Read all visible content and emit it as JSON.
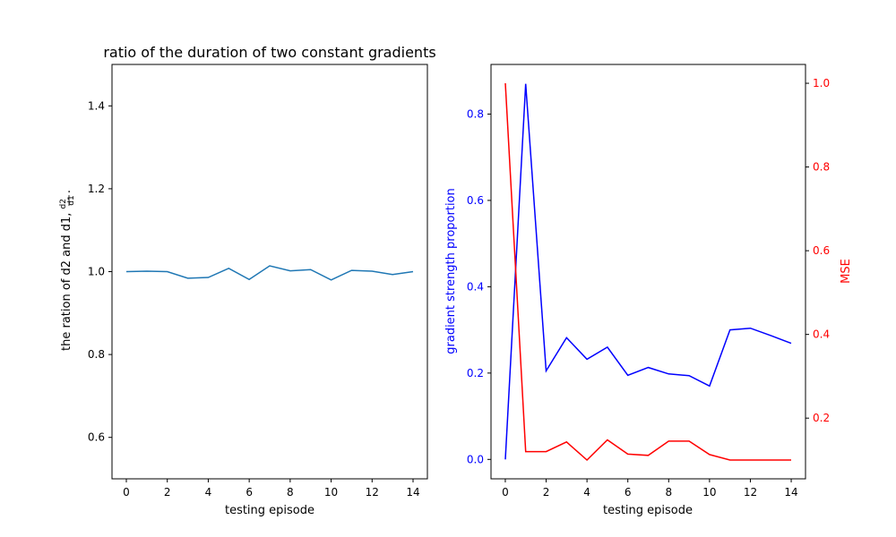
{
  "chart_data": [
    {
      "type": "line",
      "title": "ratio of the duration of two constant gradients",
      "xlabel": "testing episode",
      "ylabel": "the ration of d2 and d1, ",
      "ylabel_math": {
        "num": "d2",
        "den": "d1",
        "suffix": "."
      },
      "x": [
        0,
        1,
        2,
        3,
        4,
        5,
        6,
        7,
        8,
        9,
        10,
        11,
        12,
        13,
        14
      ],
      "series": [
        {
          "color": "#1f77b4",
          "values": [
            1.0,
            1.001,
            1.0,
            0.984,
            0.986,
            1.008,
            0.981,
            1.014,
            1.002,
            1.005,
            0.98,
            1.003,
            1.001,
            0.993,
            1.0
          ]
        }
      ],
      "xlim": [
        -0.7,
        14.7
      ],
      "ylim": [
        0.5,
        1.5
      ],
      "xticks": [
        0,
        2,
        4,
        6,
        8,
        10,
        12,
        14
      ],
      "yticks": [
        0.6,
        0.8,
        1.0,
        1.2,
        1.4
      ],
      "grid": false
    },
    {
      "type": "line",
      "xlabel": "testing episode",
      "ylabel": "gradient strength proportion",
      "ylabel_color": "#0000ff",
      "y2label": "MSE",
      "y2label_color": "#ff0000",
      "x": [
        0,
        1,
        2,
        3,
        4,
        5,
        6,
        7,
        8,
        9,
        10,
        11,
        12,
        13,
        14
      ],
      "series": [
        {
          "axis": "left",
          "color": "#0000ff",
          "values": [
            0.0,
            0.87,
            0.205,
            0.282,
            0.232,
            0.26,
            0.195,
            0.213,
            0.198,
            0.194,
            0.17,
            0.3,
            0.304,
            0.287,
            0.269
          ]
        },
        {
          "axis": "right",
          "color": "#ff0000",
          "values": [
            1.0,
            0.12,
            0.12,
            0.143,
            0.1,
            0.148,
            0.114,
            0.111,
            0.145,
            0.145,
            0.113,
            0.1,
            0.1,
            0.1,
            0.1
          ]
        }
      ],
      "xlim": [
        -0.7,
        14.7
      ],
      "ylim": [
        -0.045,
        0.915
      ],
      "y2lim": [
        0.055,
        1.045
      ],
      "xticks": [
        0,
        2,
        4,
        6,
        8,
        10,
        12,
        14
      ],
      "yticks": [
        0.0,
        0.2,
        0.4,
        0.6,
        0.8
      ],
      "y2ticks": [
        0.2,
        0.4,
        0.6,
        0.8,
        1.0
      ],
      "grid": false
    }
  ]
}
